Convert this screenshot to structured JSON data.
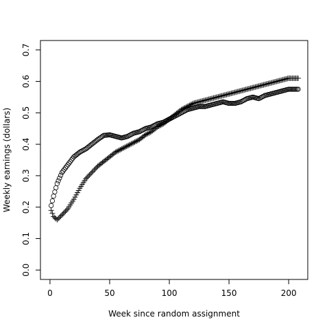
{
  "chart_data": {
    "type": "scatter",
    "xlabel": "Week since random assignment",
    "ylabel": "Weekly earnings (dollars)",
    "xlim": [
      -8,
      216
    ],
    "ylim": [
      -0.03,
      0.73
    ],
    "xticks": [
      0,
      50,
      100,
      150,
      200
    ],
    "yticks": [
      0.0,
      0.1,
      0.2,
      0.3,
      0.4,
      0.5,
      0.6,
      0.7
    ],
    "ytick_labels": [
      "0.0",
      "0.1",
      "0.2",
      "0.3",
      "0.4",
      "0.5",
      "0.6",
      "0.7"
    ],
    "grid": false,
    "legend": "none",
    "series": [
      {
        "marker": "circle",
        "x_start": 1,
        "x_end": 208,
        "anchors_x": [
          1,
          3,
          6,
          10,
          15,
          20,
          25,
          30,
          35,
          40,
          45,
          50,
          55,
          60,
          65,
          70,
          75,
          80,
          85,
          90,
          95,
          100,
          105,
          110,
          115,
          120,
          125,
          130,
          135,
          140,
          145,
          150,
          155,
          160,
          165,
          170,
          175,
          180,
          185,
          190,
          195,
          200,
          205,
          208
        ],
        "anchors_y": [
          0.205,
          0.235,
          0.275,
          0.31,
          0.335,
          0.36,
          0.375,
          0.385,
          0.4,
          0.415,
          0.428,
          0.43,
          0.425,
          0.42,
          0.425,
          0.435,
          0.44,
          0.45,
          0.455,
          0.465,
          0.47,
          0.48,
          0.49,
          0.5,
          0.51,
          0.515,
          0.52,
          0.52,
          0.525,
          0.53,
          0.535,
          0.53,
          0.53,
          0.535,
          0.545,
          0.55,
          0.545,
          0.555,
          0.56,
          0.565,
          0.57,
          0.575,
          0.575,
          0.575
        ]
      },
      {
        "marker": "plus",
        "x_start": 1,
        "x_end": 208,
        "anchors_x": [
          1,
          3,
          6,
          10,
          15,
          20,
          25,
          30,
          35,
          40,
          45,
          50,
          55,
          60,
          65,
          70,
          75,
          80,
          85,
          90,
          95,
          100,
          105,
          110,
          115,
          120,
          125,
          130,
          135,
          140,
          145,
          150,
          155,
          160,
          165,
          170,
          175,
          180,
          185,
          190,
          195,
          200,
          205,
          208
        ],
        "anchors_y": [
          0.19,
          0.17,
          0.16,
          0.175,
          0.195,
          0.225,
          0.26,
          0.29,
          0.31,
          0.33,
          0.345,
          0.36,
          0.375,
          0.385,
          0.395,
          0.405,
          0.415,
          0.43,
          0.44,
          0.455,
          0.465,
          0.48,
          0.495,
          0.51,
          0.52,
          0.53,
          0.535,
          0.54,
          0.545,
          0.55,
          0.555,
          0.56,
          0.565,
          0.57,
          0.575,
          0.58,
          0.585,
          0.59,
          0.595,
          0.6,
          0.605,
          0.61,
          0.61,
          0.61
        ]
      }
    ]
  }
}
